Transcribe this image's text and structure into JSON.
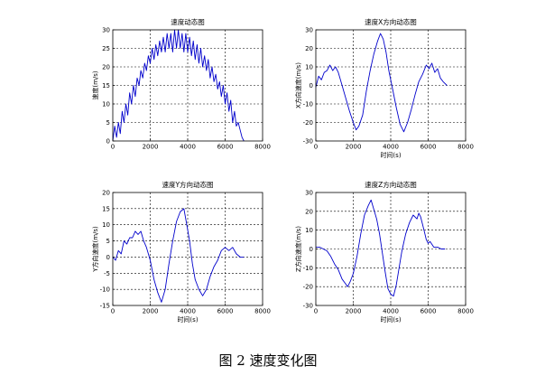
{
  "caption": "图 2  速度变化图",
  "chart_data": [
    {
      "type": "line",
      "title": "速度动态图",
      "xlabel": "",
      "ylabel": "速度(m/s)",
      "xlim": [
        0,
        8000
      ],
      "ylim": [
        0,
        30
      ],
      "xticks": [
        0,
        2000,
        4000,
        6000,
        8000
      ],
      "yticks": [
        0,
        5,
        10,
        15,
        20,
        25,
        30
      ],
      "grid": true,
      "color": "#0000cc",
      "series": [
        {
          "x": [
            0,
            100,
            200,
            300,
            400,
            500,
            600,
            700,
            800,
            900,
            1000,
            1100,
            1200,
            1300,
            1400,
            1500,
            1600,
            1700,
            1800,
            1900,
            2000,
            2100,
            2200,
            2300,
            2400,
            2500,
            2600,
            2700,
            2800,
            2900,
            3000,
            3100,
            3200,
            3300,
            3400,
            3500,
            3600,
            3700,
            3800,
            3900,
            4000,
            4100,
            4200,
            4300,
            4400,
            4500,
            4600,
            4700,
            4800,
            4900,
            5000,
            5100,
            5200,
            5300,
            5400,
            5500,
            5600,
            5700,
            5800,
            5900,
            6000,
            6100,
            6200,
            6300,
            6400,
            6500,
            6600,
            6700,
            6800,
            6900,
            7000
          ],
          "y": [
            0,
            4,
            1,
            5,
            2,
            8,
            5,
            10,
            7,
            13,
            10,
            15,
            12,
            17,
            15,
            19,
            17,
            21,
            19,
            23,
            21,
            25,
            22,
            26,
            23,
            27,
            24,
            28,
            24,
            29,
            25,
            29,
            24,
            30,
            25,
            30,
            25,
            29,
            24,
            29,
            24,
            28,
            23,
            27,
            22,
            26,
            21,
            25,
            20,
            23,
            19,
            22,
            17,
            20,
            16,
            18,
            14,
            16,
            12,
            15,
            10,
            13,
            8,
            11,
            5,
            8,
            4,
            5,
            3,
            1,
            0
          ]
        }
      ]
    },
    {
      "type": "line",
      "title": "速度X方向动态图",
      "xlabel": "时间(s)",
      "ylabel": "X方向速度(m/s)",
      "xlim": [
        0,
        8000
      ],
      "ylim": [
        -30,
        30
      ],
      "xticks": [
        0,
        2000,
        4000,
        6000,
        8000
      ],
      "yticks": [
        -30,
        -20,
        -10,
        0,
        10,
        20,
        30
      ],
      "grid": true,
      "color": "#0000cc",
      "series": [
        {
          "x": [
            0,
            150,
            300,
            450,
            600,
            750,
            900,
            1050,
            1200,
            1400,
            1600,
            1800,
            2000,
            2150,
            2300,
            2500,
            2700,
            2900,
            3100,
            3300,
            3450,
            3600,
            3750,
            3900,
            4100,
            4300,
            4500,
            4700,
            4900,
            5100,
            5300,
            5500,
            5700,
            5900,
            6050,
            6200,
            6350,
            6500,
            6650,
            6800,
            7000
          ],
          "y": [
            -1,
            5,
            3,
            7,
            8,
            11,
            8,
            10,
            7,
            0,
            -7,
            -14,
            -20,
            -24,
            -22,
            -16,
            -3,
            8,
            17,
            24,
            28,
            25,
            18,
            8,
            -2,
            -12,
            -21,
            -25,
            -20,
            -13,
            -5,
            2,
            6,
            11,
            9,
            12,
            7,
            9,
            4,
            2,
            0
          ]
        }
      ]
    },
    {
      "type": "line",
      "title": "速度Y方向动态图",
      "xlabel": "时间(s)",
      "ylabel": "Y方向速度(m/s)",
      "xlim": [
        0,
        8000
      ],
      "ylim": [
        -15,
        20
      ],
      "xticks": [
        0,
        2000,
        4000,
        6000,
        8000
      ],
      "yticks": [
        -15,
        -10,
        -5,
        0,
        5,
        10,
        15,
        20
      ],
      "grid": true,
      "color": "#0000cc",
      "series": [
        {
          "x": [
            0,
            150,
            300,
            450,
            600,
            750,
            900,
            1050,
            1200,
            1350,
            1500,
            1650,
            1800,
            2000,
            2200,
            2400,
            2600,
            2800,
            3000,
            3200,
            3400,
            3600,
            3800,
            3950,
            4100,
            4250,
            4400,
            4600,
            4800,
            5000,
            5200,
            5400,
            5600,
            5800,
            6000,
            6200,
            6400,
            6600,
            6800,
            7000
          ],
          "y": [
            0,
            -1,
            2,
            1,
            5,
            4,
            6,
            6,
            8,
            7,
            8,
            5,
            3,
            -1,
            -7,
            -11,
            -14,
            -10,
            -2,
            5,
            11,
            14,
            15,
            10,
            5,
            -2,
            -7,
            -10,
            -12,
            -10,
            -6,
            -3,
            -1,
            2,
            3,
            2,
            3,
            1,
            0,
            0
          ]
        }
      ]
    },
    {
      "type": "line",
      "title": "速度Z方向动态图",
      "xlabel": "时间(s)",
      "ylabel": "Z方向速度(m/s)",
      "xlim": [
        0,
        8000
      ],
      "ylim": [
        -30,
        30
      ],
      "xticks": [
        0,
        2000,
        4000,
        6000,
        8000
      ],
      "yticks": [
        -30,
        -20,
        -10,
        0,
        10,
        20,
        30
      ],
      "grid": true,
      "color": "#0000cc",
      "series": [
        {
          "x": [
            0,
            200,
            400,
            600,
            800,
            1000,
            1200,
            1400,
            1550,
            1700,
            1850,
            2000,
            2200,
            2400,
            2600,
            2800,
            2950,
            3100,
            3250,
            3400,
            3550,
            3700,
            3850,
            4000,
            4150,
            4300,
            4450,
            4600,
            4800,
            5000,
            5200,
            5400,
            5500,
            5600,
            5700,
            5800,
            5900,
            6000,
            6100,
            6300,
            6500,
            6700,
            6900
          ],
          "y": [
            1,
            1,
            0,
            -1,
            -4,
            -8,
            -11,
            -16,
            -18,
            -20,
            -17,
            -13,
            -4,
            8,
            18,
            23,
            26,
            21,
            16,
            8,
            -2,
            -12,
            -21,
            -24,
            -25,
            -19,
            -10,
            -1,
            8,
            14,
            18,
            16,
            19,
            17,
            13,
            9,
            5,
            3,
            4,
            1,
            1,
            0,
            0
          ]
        }
      ]
    }
  ]
}
